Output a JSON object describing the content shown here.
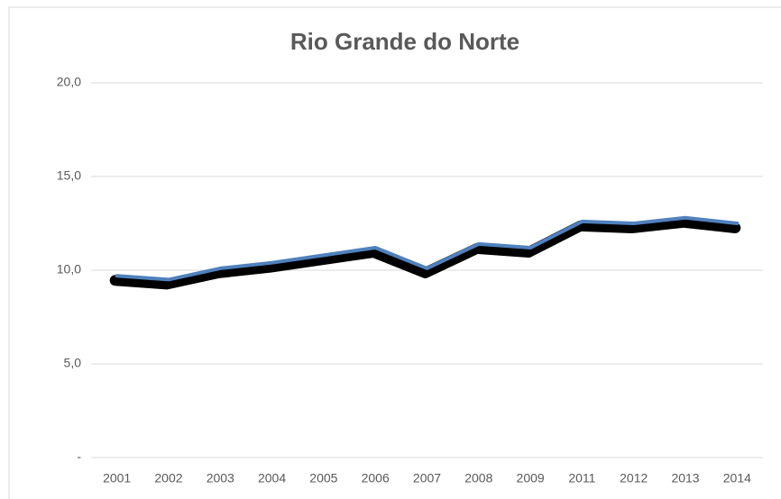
{
  "chart_data": {
    "type": "line",
    "title": "Rio Grande do Norte",
    "categories": [
      "2001",
      "2002",
      "2003",
      "2004",
      "2005",
      "2006",
      "2007",
      "2008",
      "2009",
      "2011",
      "2012",
      "2013",
      "2014"
    ],
    "series": [
      {
        "color": "#4f81bd",
        "values": [
          9.7,
          9.5,
          10.1,
          10.4,
          10.8,
          11.2,
          10.1,
          11.4,
          11.2,
          12.6,
          12.5,
          12.8,
          12.5
        ]
      }
    ],
    "ylim": [
      0,
      20
    ],
    "yticks": [
      {
        "value": 0,
        "label": "-"
      },
      {
        "value": 5,
        "label": "5,0"
      },
      {
        "value": 10,
        "label": "10,0"
      },
      {
        "value": 15,
        "label": "15,0"
      },
      {
        "value": 20,
        "label": "20,0"
      }
    ],
    "grid": true
  }
}
